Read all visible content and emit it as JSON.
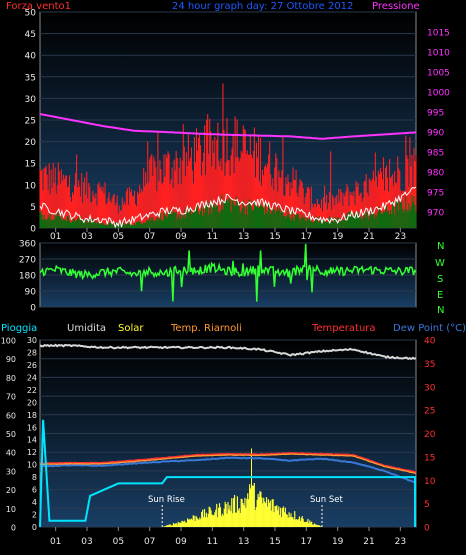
{
  "header": {
    "wind_label": "Forza vento1",
    "title": "24 hour graph day:  27 Ottobre 2012",
    "pressure_label": "Pressione"
  },
  "direction_labels": [
    "N",
    "W",
    "S",
    "E",
    "N"
  ],
  "lower_header": {
    "rain": "Pioggia",
    "humidity": "Umidita",
    "solar": "Solar",
    "heat_index": "Temp. Riarnoli",
    "temperature": "Temperatura",
    "dew_point": "Dew Point (°C)"
  },
  "annotations": {
    "sunrise": "Sun Rise",
    "sunset": "Sun Set"
  },
  "colors": {
    "wind_label": "#ff3030",
    "title": "#1e5aff",
    "pressure": "#ff33ff",
    "rain": "#00e5ff",
    "humidity": "#d8d8d8",
    "solar": "#ffff33",
    "heat_index": "#ff9933",
    "temperature": "#ff3030",
    "dew_point": "#3a78d8",
    "wind_dir": "#33ff33",
    "gust": "#ff2020",
    "avg_wind": "#106a10"
  },
  "chart_data": [
    {
      "type": "line",
      "panel": "wind-pressure",
      "x_ticks": [
        "01",
        "03",
        "05",
        "07",
        "09",
        "11",
        "13",
        "15",
        "17",
        "19",
        "21",
        "23"
      ],
      "y_left_ticks": [
        0,
        5,
        10,
        15,
        20,
        25,
        30,
        35,
        40,
        45,
        50
      ],
      "y_left_lim": [
        0,
        50
      ],
      "y_right_ticks": [
        970,
        975,
        980,
        985,
        990,
        995,
        1000,
        1005,
        1010,
        1015
      ],
      "y_right_lim": [
        966,
        1020
      ],
      "series": [
        {
          "name": "Forza vento1",
          "kind": "gust-envelope",
          "hours": [
            0,
            1,
            2,
            3,
            4,
            5,
            6,
            7,
            8,
            9,
            10,
            11,
            12,
            13,
            14,
            15,
            16,
            17,
            18,
            19,
            20,
            21,
            22,
            23,
            24
          ],
          "values": [
            13,
            12,
            11,
            10,
            9,
            6,
            8,
            13,
            15,
            16,
            18,
            20,
            22,
            19,
            18,
            15,
            12,
            8,
            6,
            7,
            9,
            10,
            12,
            14,
            16
          ]
        },
        {
          "name": "Average wind",
          "kind": "area",
          "hours": [
            0,
            1,
            2,
            3,
            4,
            5,
            6,
            7,
            8,
            9,
            10,
            11,
            12,
            13,
            14,
            15,
            16,
            17,
            18,
            19,
            20,
            21,
            22,
            23,
            24
          ],
          "values": [
            3,
            3,
            2,
            2,
            1,
            1,
            1,
            2,
            3,
            3,
            4,
            5,
            6,
            5,
            5,
            4,
            3,
            2,
            2,
            2,
            3,
            3,
            4,
            5,
            6
          ]
        },
        {
          "name": "Raffica",
          "kind": "line",
          "hours": [
            0,
            1,
            2,
            3,
            4,
            5,
            6,
            7,
            8,
            9,
            10,
            11,
            12,
            13,
            14,
            15,
            16,
            17,
            18,
            19,
            20,
            21,
            22,
            23,
            24
          ],
          "values": [
            5,
            4,
            3,
            2,
            2,
            1,
            2,
            3,
            4,
            4,
            5,
            6,
            7,
            6,
            6,
            5,
            4,
            3,
            2,
            2,
            3,
            4,
            5,
            7,
            9
          ]
        },
        {
          "name": "Pressione",
          "axis": "right",
          "hours": [
            0,
            2,
            4,
            6,
            8,
            10,
            12,
            14,
            16,
            18,
            20,
            22,
            24
          ],
          "values": [
            994.5,
            993,
            991.5,
            990.3,
            990,
            989.6,
            989.3,
            989.1,
            988.9,
            988.3,
            988.9,
            989.4,
            989.9
          ]
        }
      ]
    },
    {
      "type": "scatter",
      "panel": "wind-direction",
      "y_ticks": [
        0,
        90,
        180,
        270,
        360
      ],
      "y_lim": [
        0,
        360
      ],
      "hours": [
        0,
        1,
        2,
        3,
        4,
        5,
        6,
        7,
        8,
        9,
        10,
        11,
        12,
        13,
        14,
        15,
        16,
        17,
        18,
        19,
        20,
        21,
        22,
        23,
        24
      ],
      "values": [
        200,
        210,
        190,
        180,
        195,
        200,
        185,
        200,
        190,
        210,
        205,
        220,
        200,
        195,
        215,
        200,
        190,
        230,
        205,
        200,
        205,
        210,
        205,
        200,
        205
      ]
    },
    {
      "type": "line",
      "panel": "rain-temp",
      "x_ticks": [
        "01",
        "03",
        "05",
        "07",
        "09",
        "11",
        "13",
        "15",
        "17",
        "19",
        "21",
        "23"
      ],
      "y_left_outer_ticks": [
        0,
        10,
        20,
        30,
        40,
        50,
        60,
        70,
        80,
        90,
        100
      ],
      "y_left_outer_lim": [
        0,
        100
      ],
      "y_left_inner_ticks": [
        0,
        2,
        4,
        6,
        8,
        10,
        12,
        14,
        16,
        18,
        20,
        22,
        24,
        26,
        28,
        30
      ],
      "y_left_inner_lim": [
        0,
        30
      ],
      "y_right_ticks": [
        0,
        5,
        10,
        15,
        20,
        25,
        30,
        35,
        40
      ],
      "y_right_lim": [
        0,
        40
      ],
      "sunrise_hour": 7.8,
      "sunset_hour": 18.0,
      "series": [
        {
          "name": "Umidita",
          "axis": "outer",
          "hours": [
            0,
            2,
            4,
            6,
            8,
            10,
            12,
            14,
            16,
            18,
            20,
            22,
            24
          ],
          "values": [
            97,
            97,
            96,
            96,
            96,
            96,
            96,
            95,
            92,
            94,
            95,
            91,
            90
          ]
        },
        {
          "name": "Pioggia",
          "axis": "inner",
          "hours": [
            0,
            0.2,
            0.6,
            2.9,
            3.2,
            5.0,
            7.8,
            8.1,
            18.0,
            23.3,
            24
          ],
          "values": [
            0,
            17.2,
            1,
            1,
            5,
            7,
            7,
            8,
            8,
            8,
            8
          ]
        },
        {
          "name": "Temperatura",
          "axis": "right",
          "hours": [
            0,
            2,
            4,
            6,
            8,
            10,
            12,
            14,
            16,
            18,
            20,
            22,
            24
          ],
          "values": [
            13.6,
            13.7,
            13.7,
            14.2,
            14.8,
            15.4,
            15.6,
            15.5,
            15.8,
            15.6,
            15.4,
            13.1,
            11.7
          ]
        },
        {
          "name": "Temp. Riarnoli",
          "axis": "right",
          "hours": [
            0,
            2,
            4,
            6,
            8,
            10,
            12,
            14,
            16,
            18,
            20,
            22,
            24
          ],
          "values": [
            13.4,
            13.5,
            13.5,
            14.0,
            14.6,
            15.2,
            15.4,
            15.3,
            15.6,
            15.4,
            15.2,
            12.9,
            11.5
          ]
        },
        {
          "name": "Dew Point (°C)",
          "axis": "right",
          "hours": [
            0,
            2,
            4,
            6,
            8,
            10,
            12,
            14,
            16,
            18,
            20,
            22,
            24
          ],
          "values": [
            13.0,
            13.2,
            13.1,
            13.6,
            14.0,
            14.3,
            14.8,
            14.7,
            14.2,
            14.6,
            13.8,
            12.0,
            9.4
          ]
        },
        {
          "name": "Solar",
          "axis": "outer",
          "kind": "area",
          "hours": [
            7.8,
            9,
            10,
            11,
            12,
            13,
            13.5,
            14,
            15,
            16,
            17,
            18
          ],
          "values": [
            0,
            3,
            6,
            9,
            12,
            15,
            20,
            16,
            12,
            8,
            4,
            0
          ]
        }
      ]
    }
  ]
}
